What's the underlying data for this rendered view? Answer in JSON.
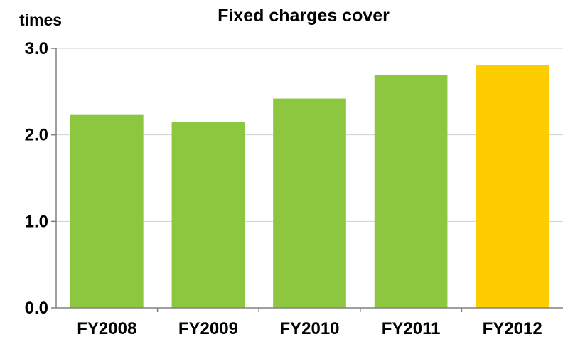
{
  "chart_data": {
    "type": "bar",
    "title": "Fixed charges cover",
    "ylabel": "times",
    "xlabel": "",
    "categories": [
      "FY2008",
      "FY2009",
      "FY2010",
      "FY2011",
      "FY2012"
    ],
    "values": [
      2.23,
      2.15,
      2.42,
      2.69,
      2.81
    ],
    "bar_colors": [
      "#8dc63f",
      "#8dc63f",
      "#8dc63f",
      "#8dc63f",
      "#ffcc00"
    ],
    "ylim": [
      0,
      3.0
    ],
    "yticks": [
      "0.0",
      "1.0",
      "2.0",
      "3.0"
    ],
    "grid": true,
    "legend": "none"
  }
}
